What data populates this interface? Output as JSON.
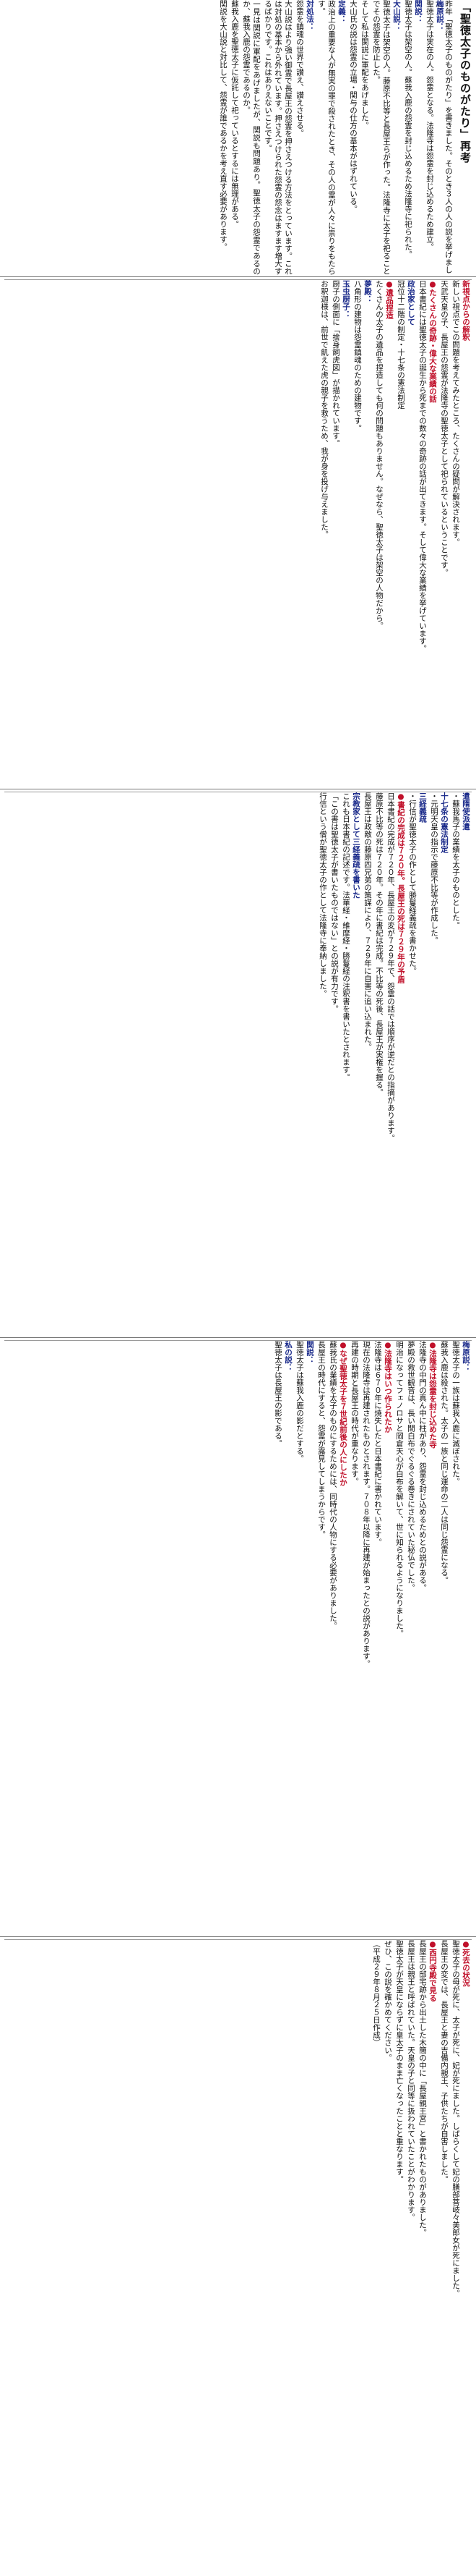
{
  "title": "「聖徳太子のものがたり」再考",
  "intro": "昨年「聖徳太子のものがたり」を書きました。そのとき３人の人の説を挙げました。",
  "tier1": [
    {
      "label": "梅原説：",
      "text": "聖徳太子は実在の人。怨霊となる。法隆寺は怨霊を封じ込めるため建立。"
    },
    {
      "label": "関説：",
      "text": "聖徳太子は架空の人。蘇我入鹿の怨霊を封じ込めるため法隆寺に祀られた。"
    },
    {
      "label": "大山説：",
      "text": "聖徳太子は架空の人。藤原不比等と長屋王らが作った。法隆寺に太子を祀ることでその怨霊を防止した。"
    },
    {
      "label": "",
      "text": "そして私は関説に軍配をあげました。"
    },
    {
      "label": "",
      "text": "大山氏の説は怨霊の立場・関与の仕方の基本がはずれている。"
    },
    {
      "label": "定義：",
      "text": "政治上の重要な人が無実の罪で殺されたとき、その人の霊が人々に祟りをもたらす。"
    },
    {
      "label": "対処法：",
      "text": "怨霊を鎮魂の世界で讃え、讃えさせる。"
    },
    {
      "label": "",
      "text": "大山説はより強い御霊で長屋王の怨霊を押さえつける方法をとっています。これは対処の基本から外れています。押さえつけられた怨霊の怨念はますます増大するばかりです。これはありえないことです。"
    },
    {
      "label": "",
      "text": "一見は関説に軍配をあげましたが、関説も問題あり。聖徳太子の怨霊であるのか、蘇我入鹿の怨霊であるのか。"
    },
    {
      "label": "",
      "text": "蘇我入鹿を聖徳太子に仮託して祀っているとするには無理がある。"
    },
    {
      "label": "",
      "text": "関説を大山説と対比して、怨霊が誰であるかを考え直す必要があります。"
    }
  ],
  "tier2": [
    {
      "label": "新視点からの解釈",
      "text": "新しい視点でこの問題を考えてみたところ、たくさんの疑問が解決されます。"
    },
    {
      "label": "",
      "text": "天武天皇の子、長屋王の怨霊が法隆寺の聖徳太子として祀られているということです。"
    },
    {
      "label": "●たくさんの奇跡・偉大な業績の話",
      "text": "日本書紀には聖徳太子の誕生から死までの数々の奇跡の話が出てきます。そして偉大な業績を挙げています。"
    },
    {
      "label": "政治家として",
      "text": "冠位十二階の制定・十七条の憲法制定"
    },
    {
      "label": "●遺品捏造",
      "text": "たくさんの太子の遺品を捏造しても何の問題もありません。なぜなら、聖徳太子は架空の人物だから。"
    },
    {
      "label": "夢殿：",
      "text": "八角形の建物は怨霊鎮魂のための建物です。"
    },
    {
      "label": "玉虫厨子：",
      "text": "厨子の側面に「捨身飼虎図」が描かれています。"
    },
    {
      "label": "",
      "text": "お釈迦様は、前世で飢えた虎の親子を救うため、我が身を投げ与えました。"
    }
  ],
  "tier3": [
    {
      "label": "遣隋使派遣",
      "text": "・蘇我馬子の業績を太子のものとした。"
    },
    {
      "label": "十七条の憲法制定",
      "text": "・元明天皇の指示で藤原不比等が作成した。"
    },
    {
      "label": "三経義疏",
      "text": "・行信が聖徳太子の作として勝鬘経義疏を書かせた。"
    },
    {
      "label": "●書紀の完成は７２０年。長屋王の死は７２９年の予盾",
      "text": "日本書紀の完成が７２０年、長屋王の変が７２９年で、怨霊の話では順序が逆だとの指摘があります。"
    },
    {
      "label": "",
      "text": "藤原不比等の死は７２０年。その年に書紀は完成。不比等の死後、長屋王が実権を握る。"
    },
    {
      "label": "",
      "text": "長屋王は政敵の藤原四兄弟の策謀により、７２９年に自害に追い込まれた。"
    },
    {
      "label": "宗教家として三経義疏を書いた",
      "text": "これも日本書紀の記述です。法華経・維摩経・勝鬘経の注釈書を書いたとされます。"
    },
    {
      "label": "",
      "text": "「この書は聖徳太子が書いたものではない」との説が有力です。"
    },
    {
      "label": "",
      "text": "行信という僧が聖徳太子の作として法隆寺に奉納しました。"
    }
  ],
  "tier4": [
    {
      "label": "梅原説：",
      "text": "聖徳太子の一族は蘇我入鹿に滅ぼされた。"
    },
    {
      "label": "",
      "text": "蘇我入鹿は殺された。太子の一族と同じ運命の二人は同じ怨霊になる。"
    },
    {
      "label": "●法隆寺は怨霊を封じ込めた寺",
      "text": "法隆寺の中門の真ん中に柱があり、怨霊を封じ込めるためとの説がある。"
    },
    {
      "label": "",
      "text": "夢殿の救世観音は、長い間白布でぐるぐる巻きにされていた秘仏でした。"
    },
    {
      "label": "",
      "text": "明治になってフェノロサと岡倉天心が白布を解いて、世に知られるようになりました。"
    },
    {
      "label": "●法隆寺はいつ作られたか",
      "text": "法隆寺は６７０年に焼失したと日本書紀に書かれています。"
    },
    {
      "label": "",
      "text": "現在の法隆寺は再建されたものとされます。７０８年以降に再建が始まったとの説があります。"
    },
    {
      "label": "",
      "text": "再建の時期と長屋王の時代が重なります。"
    },
    {
      "label": "●なぜ聖徳太子を７世紀前後の人にしたか",
      "text": "蘇我氏の業績を太子のものにするためには、同時代の人物にする必要がありました。"
    },
    {
      "label": "",
      "text": "長屋王の時代にすると、怨霊が露見してしまうからです。"
    },
    {
      "label": "関説：",
      "text": "聖徳太子は蘇我入鹿の影だとする。"
    },
    {
      "label": "私の説：",
      "text": "聖徳太子は長屋王の影である。"
    }
  ],
  "tier5": [
    {
      "label": "●死去の状況",
      "text": "聖徳太子の母が死に、太子が死に、妃が死にました。しばらくして妃の膳部菩岐々美郎女が死にました。"
    },
    {
      "label": "",
      "text": "長屋王の変では、長屋王と妻の吉備内親王、子供たちが自害しました。"
    },
    {
      "label": "●西円寺殿で見る",
      "text": "長屋王の邸宅跡から出土した木簡の中に「長屋親王宮」と書かれたものがありました。"
    },
    {
      "label": "",
      "text": "長屋王は親王と呼ばれていた。天皇の子と同等に扱われていたことがわかります。"
    },
    {
      "label": "",
      "text": "聖徳太子が天皇にならずに皇太子のまま亡くなったことと重なります。"
    },
    {
      "label": "",
      "text": "ぜひ、この説を確かめてください。"
    },
    {
      "label": "",
      "text": "（平成２９年８月２５日作成）"
    }
  ]
}
